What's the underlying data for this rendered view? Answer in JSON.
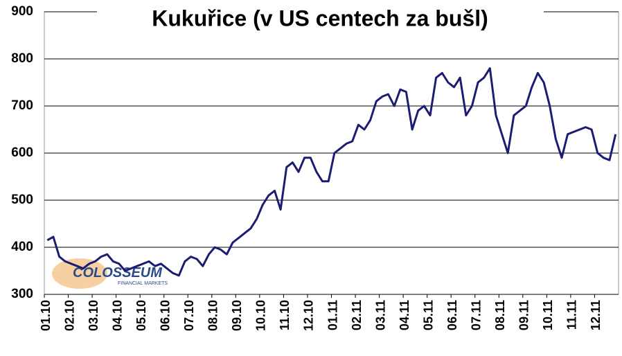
{
  "chart_data": {
    "type": "line",
    "title": "Kukuřice (v US centech za bušl)",
    "logo": {
      "name": "COLOSSEUM",
      "tagline": "FINANCIAL MARKETS"
    },
    "categories": [
      "01.10",
      null,
      null,
      null,
      "02.10",
      null,
      null,
      null,
      "03.10",
      null,
      null,
      null,
      "04.10",
      null,
      null,
      null,
      "05.10",
      null,
      null,
      null,
      "06.10",
      null,
      null,
      null,
      "07.10",
      null,
      null,
      null,
      "08.10",
      null,
      null,
      null,
      "09.10",
      null,
      null,
      null,
      "10.10",
      null,
      null,
      null,
      "11.10",
      null,
      null,
      null,
      "12.10",
      null,
      null,
      null,
      "01.11",
      null,
      null,
      null,
      "02.11",
      null,
      null,
      null,
      "03.11",
      null,
      null,
      null,
      "04.11",
      null,
      null,
      null,
      "05.11",
      null,
      null,
      null,
      "06.11",
      null,
      null,
      null,
      "07.11",
      null,
      null,
      null,
      "08.11",
      null,
      null,
      null,
      "09.11",
      null,
      null,
      null,
      "10.11",
      null,
      null,
      null,
      "11.11",
      null,
      null,
      null,
      "12.11",
      null,
      null,
      null
    ],
    "series": [
      {
        "name": "Kukuřice",
        "color": "#1c1c72",
        "values": [
          415,
          422,
          380,
          370,
          365,
          360,
          355,
          365,
          370,
          380,
          385,
          370,
          365,
          350,
          355,
          360,
          365,
          370,
          360,
          365,
          355,
          345,
          340,
          370,
          380,
          375,
          360,
          385,
          400,
          395,
          385,
          410,
          420,
          430,
          440,
          460,
          490,
          510,
          520,
          480,
          570,
          580,
          560,
          590,
          590,
          560,
          540,
          540,
          600,
          610,
          620,
          625,
          660,
          650,
          670,
          710,
          720,
          725,
          700,
          735,
          730,
          650,
          690,
          700,
          680,
          760,
          770,
          750,
          740,
          760,
          680,
          700,
          750,
          760,
          780,
          680,
          640,
          600,
          680,
          690,
          700,
          740,
          770,
          750,
          700,
          630,
          590,
          640,
          645,
          650,
          655,
          650,
          600,
          590,
          585,
          640
        ]
      }
    ],
    "ylim": [
      300,
      900
    ],
    "yticks": [
      300,
      400,
      500,
      600,
      700,
      800,
      900
    ],
    "grid": true
  }
}
